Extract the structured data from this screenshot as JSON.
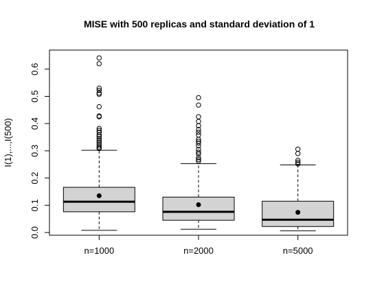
{
  "chart_data": {
    "type": "boxplot",
    "title": "MISE with 500 replicas and standard deviation of 1",
    "xlabel": "",
    "ylabel": "I(1),...,I(500)",
    "categories": [
      "n=1000",
      "n=2000",
      "n=5000"
    ],
    "ylim": [
      -0.01,
      0.67
    ],
    "yticks": [
      0.0,
      0.1,
      0.2,
      0.3,
      0.4,
      0.5,
      0.6
    ],
    "ytick_labels": [
      "0.0",
      "0.1",
      "0.2",
      "0.3",
      "0.4",
      "0.5",
      "0.6"
    ],
    "grid": false,
    "box_fill": "#d3d3d3",
    "boxes": [
      {
        "label": "n=1000",
        "whisker_low": 0.008,
        "q1": 0.076,
        "median": 0.113,
        "q3": 0.166,
        "whisker_high": 0.302,
        "mean": 0.135,
        "outliers": [
          0.308,
          0.312,
          0.318,
          0.325,
          0.332,
          0.338,
          0.345,
          0.352,
          0.358,
          0.368,
          0.375,
          0.382,
          0.425,
          0.428,
          0.462,
          0.508,
          0.512,
          0.522,
          0.53,
          0.62,
          0.641
        ]
      },
      {
        "label": "n=2000",
        "whisker_low": 0.012,
        "q1": 0.045,
        "median": 0.076,
        "q3": 0.13,
        "whisker_high": 0.253,
        "mean": 0.102,
        "outliers": [
          0.262,
          0.268,
          0.275,
          0.288,
          0.295,
          0.305,
          0.318,
          0.328,
          0.335,
          0.342,
          0.358,
          0.368,
          0.378,
          0.392,
          0.408,
          0.425,
          0.468,
          0.495
        ]
      },
      {
        "label": "n=5000",
        "whisker_low": 0.006,
        "q1": 0.022,
        "median": 0.047,
        "q3": 0.115,
        "whisker_high": 0.248,
        "mean": 0.074,
        "outliers": [
          0.252,
          0.258,
          0.265,
          0.29,
          0.306
        ]
      }
    ]
  }
}
